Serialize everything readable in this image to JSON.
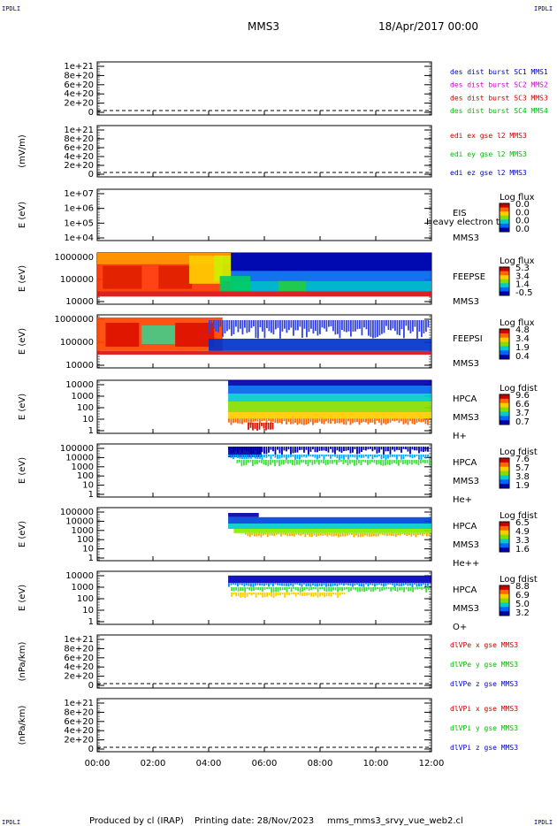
{
  "header": {
    "corner_top_left": "IPDLI",
    "corner_top_right": "IPDLI",
    "corner_bottom_left": "IPDLI",
    "corner_bottom_right": "IPDLI",
    "title": "MMS3",
    "date": "18/Apr/2017 00:00"
  },
  "footer": {
    "producer": "Produced by cl (IRAP)",
    "printing": "Printing date: 28/Nov/2023",
    "file": "mms_mms3_srvy_vue_web2.cl"
  },
  "chart_data": [
    {
      "id": "p1",
      "type": "line",
      "ylabel": "",
      "yticks": [
        "1e+21",
        "8e+20",
        "6e+20",
        "4e+20",
        "2e+20",
        "0"
      ],
      "legend": [
        {
          "text": "des dist burst SC1 MMS1",
          "color": "#0000cc"
        },
        {
          "text": "des dist burst SC2 MMS2",
          "color": "#cc00cc"
        },
        {
          "text": "des dist burst SC3 MMS3",
          "color": "#cc0000"
        },
        {
          "text": "des dist burst SC4 MMS4",
          "color": "#00bb00"
        }
      ],
      "series": [],
      "zero_line": true
    },
    {
      "id": "p2",
      "type": "line",
      "ylabel": "(mV/m)",
      "yticks": [
        "1e+21",
        "8e+20",
        "6e+20",
        "4e+20",
        "2e+20",
        "0"
      ],
      "legend": [
        {
          "text": "edi ex gse l2 MMS3",
          "color": "#cc0000"
        },
        {
          "text": "edi ey gse l2 MMS3",
          "color": "#00bb00"
        },
        {
          "text": "edi ez gse l2 MMS3",
          "color": "#0000cc"
        }
      ],
      "series": [],
      "zero_line": true
    },
    {
      "id": "p3",
      "type": "heatmap",
      "ylabel": "E (eV)",
      "yticks": [
        "1e+07",
        "1e+06",
        "1e+05",
        "1e+04"
      ],
      "instrument": [
        "EIS",
        "MMS3"
      ],
      "overlay": "Heavy electron tof",
      "cb_title": "Log flux",
      "cb_ticks": [
        "0.0",
        "0.0",
        "0.0",
        "0.0"
      ],
      "blocks": []
    },
    {
      "id": "p4",
      "type": "heatmap",
      "ylabel": "E (eV)",
      "yticks": [
        "1000000",
        "100000",
        "10000"
      ],
      "instrument": [
        "FEEPSE",
        "MMS3"
      ],
      "cb_title": "Log flux",
      "cb_ticks": [
        "5.3",
        "3.4",
        "1.4",
        "-0.5"
      ],
      "blocks": [
        {
          "t0": 0,
          "t1": 12,
          "e0": 0.75,
          "e1": 0.85,
          "c": "#d81010"
        },
        {
          "t0": 0,
          "t1": 4.8,
          "e0": 0.0,
          "e1": 0.75,
          "c": "#ff3300"
        },
        {
          "t0": 0,
          "t1": 4.8,
          "e0": 0.0,
          "e1": 0.22,
          "c": "#ff9900"
        },
        {
          "t0": 0.2,
          "t1": 1.6,
          "e0": 0.25,
          "e1": 0.7,
          "c": "#e02000"
        },
        {
          "t0": 2.2,
          "t1": 3.4,
          "e0": 0.25,
          "e1": 0.7,
          "c": "#e02000"
        },
        {
          "t0": 3.3,
          "t1": 4.5,
          "e0": 0.05,
          "e1": 0.6,
          "c": "#ffcc00"
        },
        {
          "t0": 4.2,
          "t1": 4.8,
          "e0": 0.05,
          "e1": 0.55,
          "c": "#ccee00"
        },
        {
          "t0": 4.8,
          "t1": 12,
          "e0": 0.0,
          "e1": 0.75,
          "c": "#0066ee"
        },
        {
          "t0": 4.8,
          "t1": 12,
          "e0": 0.0,
          "e1": 0.35,
          "c": "#0000aa"
        },
        {
          "t0": 4.8,
          "t1": 12,
          "e0": 0.55,
          "e1": 0.75,
          "c": "#00bbcc"
        },
        {
          "t0": 4.4,
          "t1": 5.5,
          "e0": 0.45,
          "e1": 0.75,
          "c": "#00cc66"
        },
        {
          "t0": 6.5,
          "t1": 7.5,
          "e0": 0.55,
          "e1": 0.75,
          "c": "#22cc44"
        }
      ]
    },
    {
      "id": "p5",
      "type": "heatmap",
      "ylabel": "E (eV)",
      "yticks": [
        "1000000",
        "100000",
        "10000"
      ],
      "instrument": [
        "FEEPSI",
        "MMS3"
      ],
      "cb_title": "Log flux",
      "cb_ticks": [
        "4.8",
        "3.4",
        "1.9",
        "0.4"
      ],
      "blocks": [
        {
          "t0": 0,
          "t1": 12,
          "e0": 0.68,
          "e1": 0.75,
          "c": "#e01010"
        },
        {
          "t0": 0,
          "t1": 4.5,
          "e0": 0.05,
          "e1": 0.68,
          "c": "#ff4400"
        },
        {
          "t0": 0.3,
          "t1": 1.5,
          "e0": 0.15,
          "e1": 0.6,
          "c": "#dd1100"
        },
        {
          "t0": 1.6,
          "t1": 2.8,
          "e0": 0.2,
          "e1": 0.55,
          "c": "#44cc88"
        },
        {
          "t0": 2.8,
          "t1": 4.2,
          "e0": 0.15,
          "e1": 0.6,
          "c": "#dd1100"
        },
        {
          "t0": 4.0,
          "t1": 12,
          "e0": 0.45,
          "e1": 0.68,
          "c": "#0033cc"
        },
        {
          "t0": 4.0,
          "t1": 12,
          "e0": 0.1,
          "e1": 0.45,
          "c": "#3344dd",
          "sparse": true
        }
      ]
    },
    {
      "id": "p6",
      "type": "heatmap",
      "ylabel": "E (eV)",
      "yticks": [
        "10000",
        "1000",
        "100",
        "10",
        "1"
      ],
      "instrument": [
        "HPCA",
        "MMS3",
        "H+"
      ],
      "cb_title": "Log fdist",
      "cb_ticks": [
        "9.6",
        "6.6",
        "3.7",
        "0.7"
      ],
      "blocks": [
        {
          "t0": 4.7,
          "t1": 12,
          "e0": 0.0,
          "e1": 0.1,
          "c": "#0000aa"
        },
        {
          "t0": 4.7,
          "t1": 12,
          "e0": 0.1,
          "e1": 0.25,
          "c": "#0066ee"
        },
        {
          "t0": 4.7,
          "t1": 12,
          "e0": 0.25,
          "e1": 0.4,
          "c": "#00cccc"
        },
        {
          "t0": 4.7,
          "t1": 12,
          "e0": 0.4,
          "e1": 0.6,
          "c": "#88dd00"
        },
        {
          "t0": 4.7,
          "t1": 12,
          "e0": 0.6,
          "e1": 0.72,
          "c": "#ffcc00"
        },
        {
          "t0": 4.7,
          "t1": 12,
          "e0": 0.72,
          "e1": 0.85,
          "c": "#ff6600",
          "sparse": true
        },
        {
          "t0": 5.4,
          "t1": 6.4,
          "e0": 0.8,
          "e1": 0.95,
          "c": "#dd1100",
          "sparse": true
        }
      ]
    },
    {
      "id": "p7",
      "type": "heatmap",
      "ylabel": "E (eV)",
      "yticks": [
        "100000",
        "10000",
        "1000",
        "100",
        "10",
        "1"
      ],
      "instrument": [
        "HPCA",
        "MMS3",
        "He+"
      ],
      "cb_title": "Log fdist",
      "cb_ticks": [
        "7.6",
        "5.7",
        "3.8",
        "1.9"
      ],
      "blocks": [
        {
          "t0": 4.7,
          "t1": 12,
          "e0": 0.05,
          "e1": 0.2,
          "c": "#0000aa",
          "sparse": true
        },
        {
          "t0": 4.7,
          "t1": 5.9,
          "e0": 0.05,
          "e1": 0.25,
          "c": "#0000aa"
        },
        {
          "t0": 4.7,
          "t1": 12,
          "e0": 0.2,
          "e1": 0.3,
          "c": "#00aaff",
          "sparse": true
        },
        {
          "t0": 5.0,
          "t1": 12,
          "e0": 0.3,
          "e1": 0.42,
          "c": "#44dd44",
          "sparse": true
        }
      ]
    },
    {
      "id": "p8",
      "type": "heatmap",
      "ylabel": "E (eV)",
      "yticks": [
        "100000",
        "10000",
        "1000",
        "100",
        "10",
        "1"
      ],
      "instrument": [
        "HPCA",
        "MMS3",
        "He++"
      ],
      "cb_title": "Log fdist",
      "cb_ticks": [
        "6.5",
        "4.9",
        "3.3",
        "1.6"
      ],
      "blocks": [
        {
          "t0": 4.7,
          "t1": 5.8,
          "e0": 0.1,
          "e1": 0.18,
          "c": "#0000aa"
        },
        {
          "t0": 4.7,
          "t1": 12,
          "e0": 0.18,
          "e1": 0.3,
          "c": "#0044dd"
        },
        {
          "t0": 4.7,
          "t1": 12,
          "e0": 0.3,
          "e1": 0.4,
          "c": "#00cccc"
        },
        {
          "t0": 4.9,
          "t1": 12,
          "e0": 0.4,
          "e1": 0.48,
          "c": "#88ee00"
        },
        {
          "t0": 5.3,
          "t1": 12,
          "e0": 0.48,
          "e1": 0.56,
          "c": "#ffaa00",
          "sparse": true
        }
      ]
    },
    {
      "id": "p9",
      "type": "heatmap",
      "ylabel": "E (eV)",
      "yticks": [
        "10000",
        "1000",
        "100",
        "10",
        "1"
      ],
      "instrument": [
        "HPCA",
        "MMS3",
        "O+"
      ],
      "cb_title": "Log fdist",
      "cb_ticks": [
        "8.8",
        "6.9",
        "5.0",
        "3.2"
      ],
      "blocks": [
        {
          "t0": 4.7,
          "t1": 12,
          "e0": 0.08,
          "e1": 0.22,
          "c": "#0000bb"
        },
        {
          "t0": 4.7,
          "t1": 12,
          "e0": 0.22,
          "e1": 0.3,
          "c": "#0088ff",
          "sparse": true
        },
        {
          "t0": 4.8,
          "t1": 12,
          "e0": 0.3,
          "e1": 0.4,
          "c": "#44dd44",
          "sparse": true
        },
        {
          "t0": 4.8,
          "t1": 9.0,
          "e0": 0.4,
          "e1": 0.5,
          "c": "#ffcc00",
          "sparse": true
        }
      ]
    },
    {
      "id": "p10",
      "type": "line",
      "ylabel": "(nPa/km)",
      "yticks": [
        "1e+21",
        "8e+20",
        "6e+20",
        "4e+20",
        "2e+20",
        "0"
      ],
      "legend": [
        {
          "text": "dlVPe x gse MMS3",
          "color": "#cc0000"
        },
        {
          "text": "dlVPe y gse MMS3",
          "color": "#00bb00"
        },
        {
          "text": "dlVPe z gse MMS3",
          "color": "#0000cc"
        }
      ],
      "series": [],
      "zero_line": true
    },
    {
      "id": "p11",
      "type": "line",
      "ylabel": "(nPa/km)",
      "yticks": [
        "1e+21",
        "8e+20",
        "6e+20",
        "4e+20",
        "2e+20",
        "0"
      ],
      "legend": [
        {
          "text": "dlVPi x gse MMS3",
          "color": "#cc0000"
        },
        {
          "text": "dlVPi y gse MMS3",
          "color": "#00bb00"
        },
        {
          "text": "dlVPi z gse MMS3",
          "color": "#0000cc"
        }
      ],
      "series": [],
      "zero_line": true
    }
  ],
  "x_axis": {
    "ticks": [
      "00:00",
      "02:00",
      "04:00",
      "06:00",
      "08:00",
      "10:00",
      "12:00"
    ],
    "range_hours": [
      0,
      12
    ]
  }
}
